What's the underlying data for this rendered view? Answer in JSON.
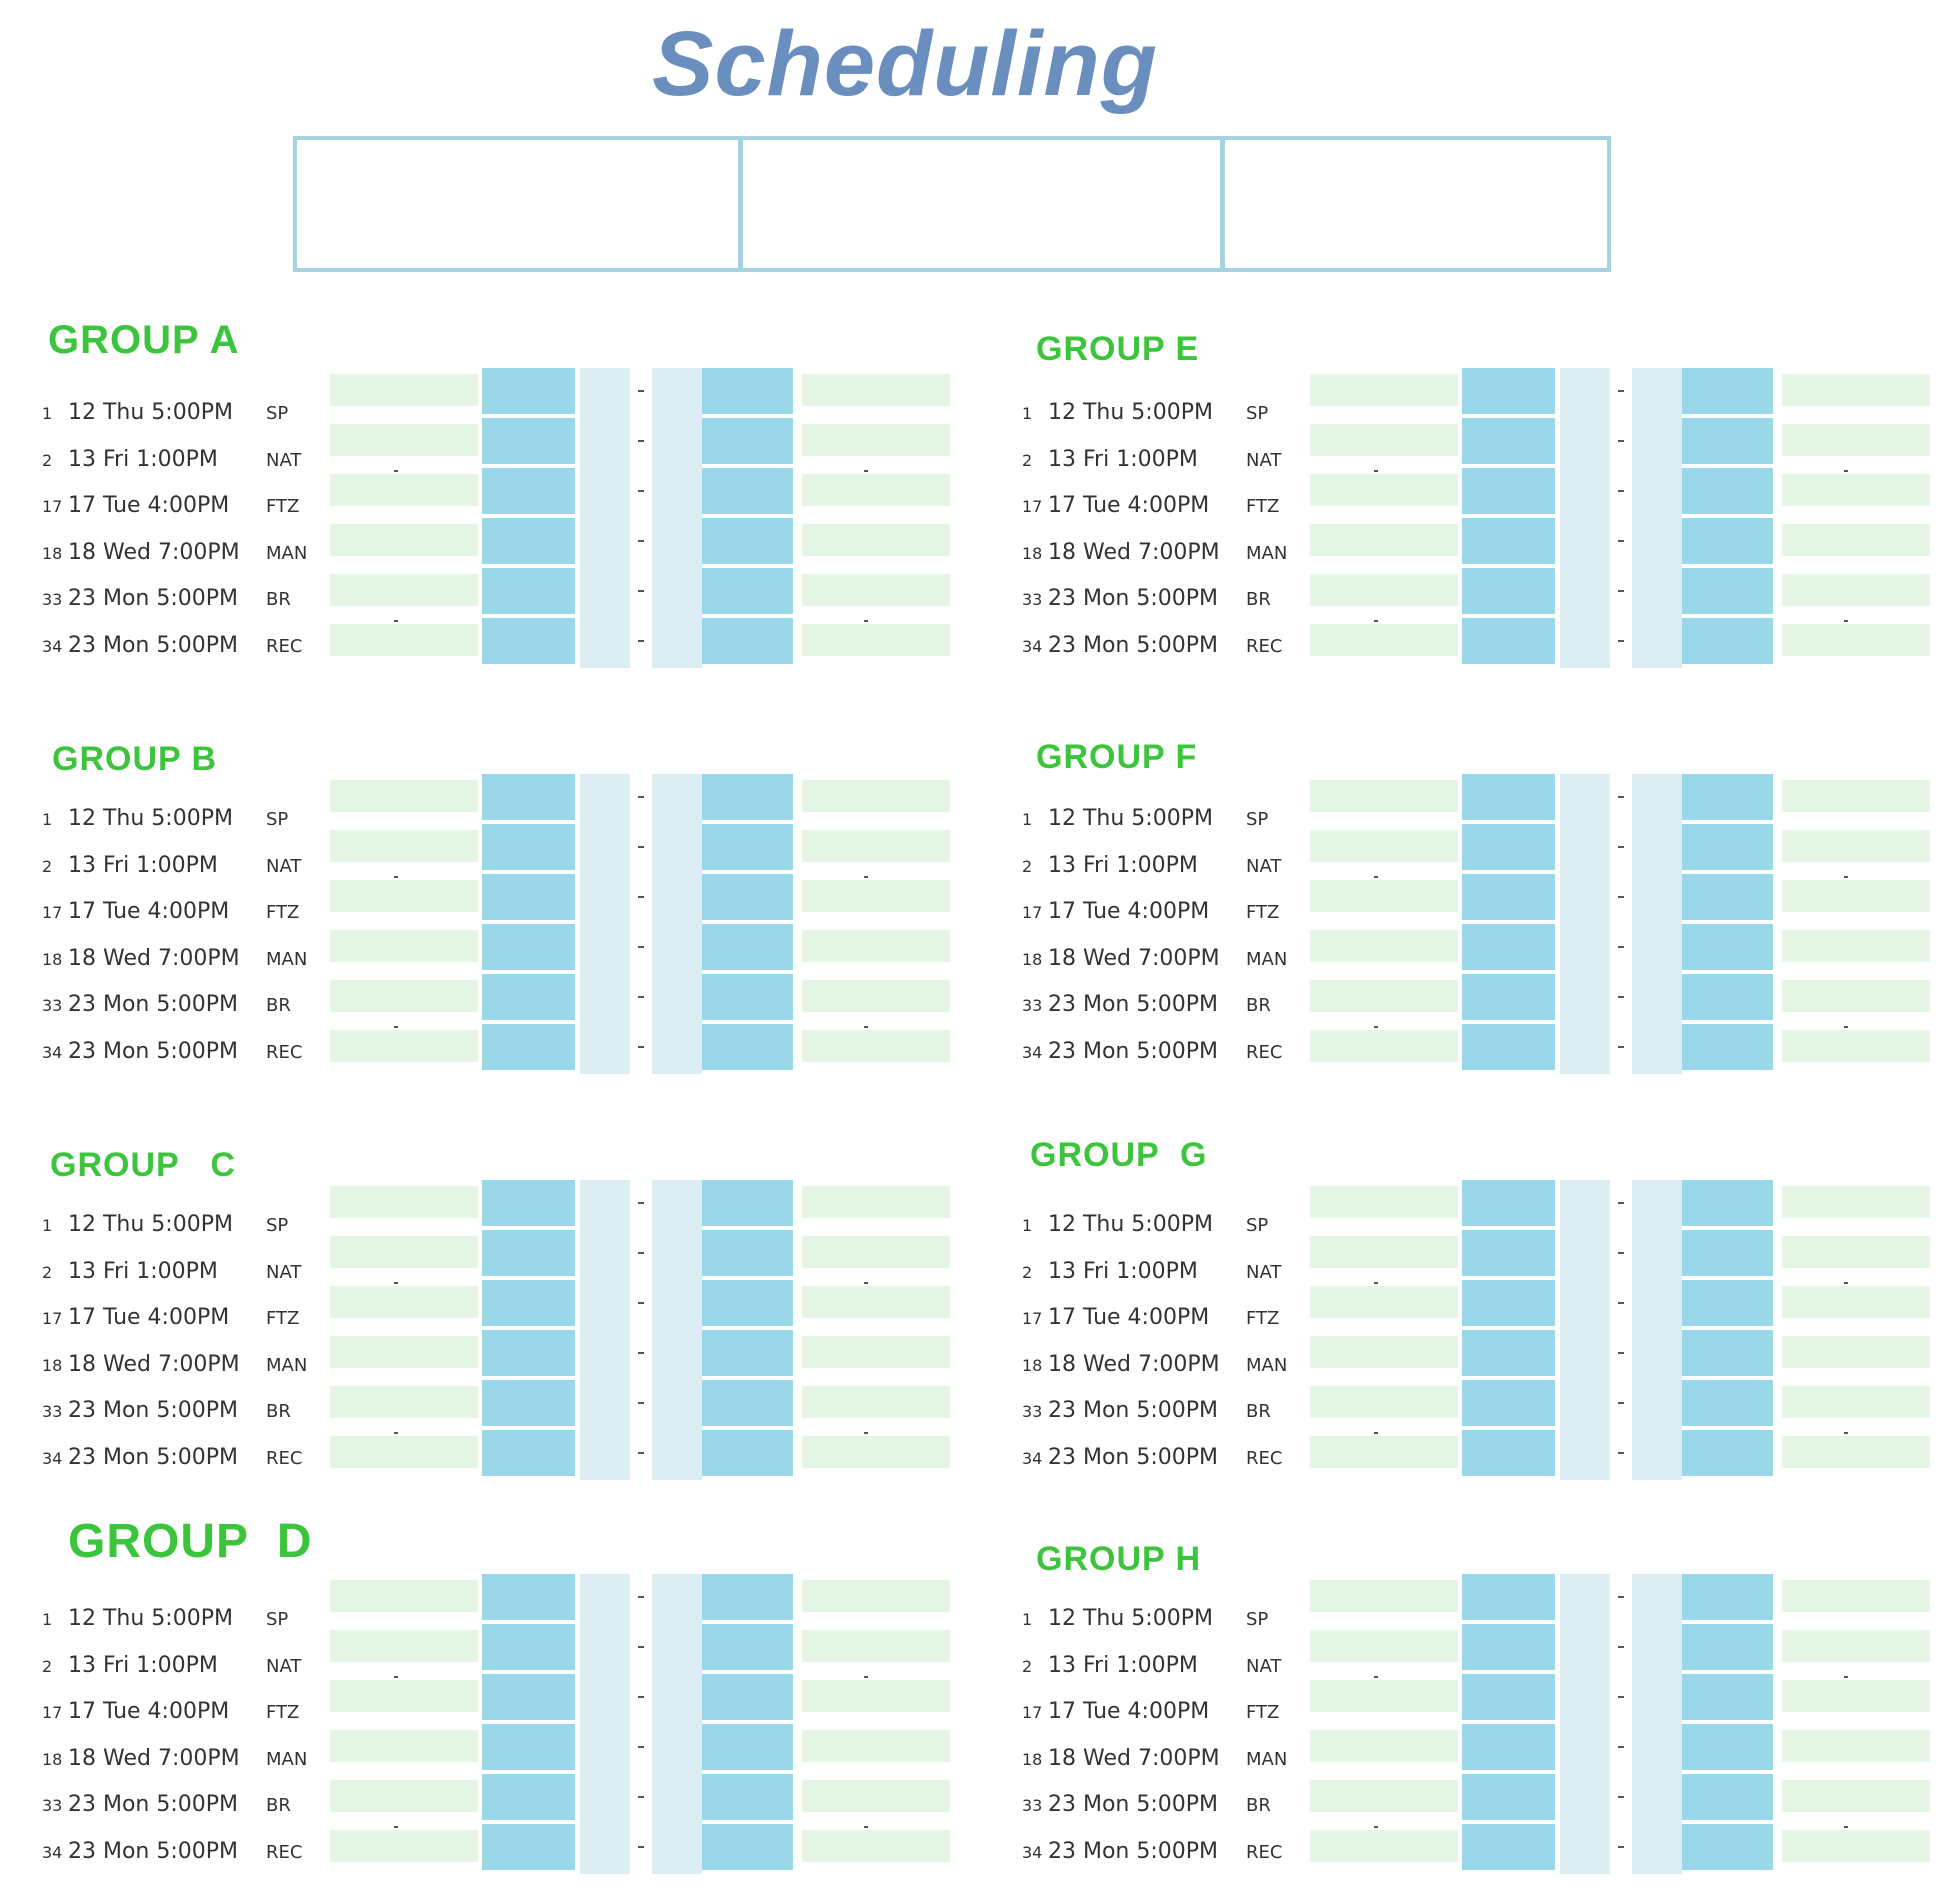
{
  "title": "Scheduling",
  "colors": {
    "title": "#6a8fbf",
    "box_border": "#a5d2de",
    "green": "#3cc43c",
    "light_green": "#e5f6e5",
    "blue": "#9ad7e8",
    "pale_blue": "#dcedf3"
  },
  "header_cells": [
    "",
    "",
    ""
  ],
  "groups": [
    {
      "name": "GROUP A",
      "matches": [
        {
          "num": "1",
          "date": "12 Thu 5:00PM",
          "team": "SP"
        },
        {
          "num": "2",
          "date": "13 Fri 1:00PM",
          "team": "NAT"
        },
        {
          "num": "17",
          "date": "17 Tue 4:00PM",
          "team": "FTZ"
        },
        {
          "num": "18",
          "date": "18 Wed 7:00PM",
          "team": "MAN"
        },
        {
          "num": "33",
          "date": "23 Mon 5:00PM",
          "team": "BR"
        },
        {
          "num": "34",
          "date": "23 Mon 5:00PM",
          "team": "REC"
        }
      ]
    },
    {
      "name": "GROUP B",
      "matches": [
        {
          "num": "1",
          "date": "12 Thu 5:00PM",
          "team": "SP"
        },
        {
          "num": "2",
          "date": "13 Fri 1:00PM",
          "team": "NAT"
        },
        {
          "num": "17",
          "date": "17 Tue 4:00PM",
          "team": "FTZ"
        },
        {
          "num": "18",
          "date": "18 Wed 7:00PM",
          "team": "MAN"
        },
        {
          "num": "33",
          "date": "23 Mon 5:00PM",
          "team": "BR"
        },
        {
          "num": "34",
          "date": "23 Mon 5:00PM",
          "team": "REC"
        }
      ]
    },
    {
      "name": "GROUP   C",
      "matches": [
        {
          "num": "1",
          "date": "12 Thu 5:00PM",
          "team": "SP"
        },
        {
          "num": "2",
          "date": "13 Fri 1:00PM",
          "team": "NAT"
        },
        {
          "num": "17",
          "date": "17 Tue 4:00PM",
          "team": "FTZ"
        },
        {
          "num": "18",
          "date": "18 Wed 7:00PM",
          "team": "MAN"
        },
        {
          "num": "33",
          "date": "23 Mon 5:00PM",
          "team": "BR"
        },
        {
          "num": "34",
          "date": "23 Mon 5:00PM",
          "team": "REC"
        }
      ]
    },
    {
      "name": "GROUP  D",
      "matches": [
        {
          "num": "1",
          "date": "12 Thu 5:00PM",
          "team": "SP"
        },
        {
          "num": "2",
          "date": "13 Fri 1:00PM",
          "team": "NAT"
        },
        {
          "num": "17",
          "date": "17 Tue 4:00PM",
          "team": "FTZ"
        },
        {
          "num": "18",
          "date": "18 Wed 7:00PM",
          "team": "MAN"
        },
        {
          "num": "33",
          "date": "23 Mon 5:00PM",
          "team": "BR"
        },
        {
          "num": "34",
          "date": "23 Mon 5:00PM",
          "team": "REC"
        }
      ]
    },
    {
      "name": "GROUP E",
      "matches": [
        {
          "num": "1",
          "date": "12 Thu 5:00PM",
          "team": "SP"
        },
        {
          "num": "2",
          "date": "13 Fri 1:00PM",
          "team": "NAT"
        },
        {
          "num": "17",
          "date": "17 Tue 4:00PM",
          "team": "FTZ"
        },
        {
          "num": "18",
          "date": "18 Wed 7:00PM",
          "team": "MAN"
        },
        {
          "num": "33",
          "date": "23 Mon 5:00PM",
          "team": "BR"
        },
        {
          "num": "34",
          "date": "23 Mon 5:00PM",
          "team": "REC"
        }
      ]
    },
    {
      "name": "GROUP F",
      "matches": [
        {
          "num": "1",
          "date": "12 Thu 5:00PM",
          "team": "SP"
        },
        {
          "num": "2",
          "date": "13 Fri 1:00PM",
          "team": "NAT"
        },
        {
          "num": "17",
          "date": "17 Tue 4:00PM",
          "team": "FTZ"
        },
        {
          "num": "18",
          "date": "18 Wed 7:00PM",
          "team": "MAN"
        },
        {
          "num": "33",
          "date": "23 Mon 5:00PM",
          "team": "BR"
        },
        {
          "num": "34",
          "date": "23 Mon 5:00PM",
          "team": "REC"
        }
      ]
    },
    {
      "name": "GROUP  G",
      "matches": [
        {
          "num": "1",
          "date": "12 Thu 5:00PM",
          "team": "SP"
        },
        {
          "num": "2",
          "date": "13 Fri 1:00PM",
          "team": "NAT"
        },
        {
          "num": "17",
          "date": "17 Tue 4:00PM",
          "team": "FTZ"
        },
        {
          "num": "18",
          "date": "18 Wed 7:00PM",
          "team": "MAN"
        },
        {
          "num": "33",
          "date": "23 Mon 5:00PM",
          "team": "BR"
        },
        {
          "num": "34",
          "date": "23 Mon 5:00PM",
          "team": "REC"
        }
      ]
    },
    {
      "name": "GROUP H",
      "matches": [
        {
          "num": "1",
          "date": "12 Thu 5:00PM",
          "team": "SP"
        },
        {
          "num": "2",
          "date": "13 Fri 1:00PM",
          "team": "NAT"
        },
        {
          "num": "17",
          "date": "17 Tue 4:00PM",
          "team": "FTZ"
        },
        {
          "num": "18",
          "date": "18 Wed 7:00PM",
          "team": "MAN"
        },
        {
          "num": "33",
          "date": "23 Mon 5:00PM",
          "team": "BR"
        },
        {
          "num": "34",
          "date": "23 Mon 5:00PM",
          "team": "REC"
        }
      ]
    }
  ]
}
